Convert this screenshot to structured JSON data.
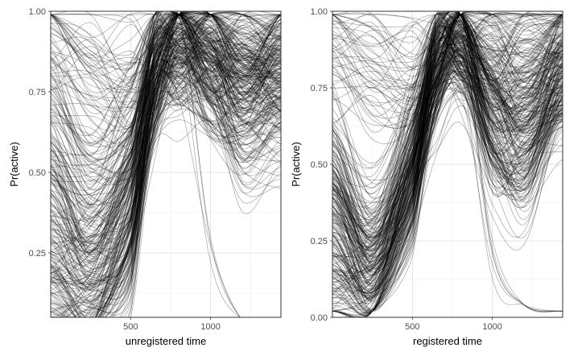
{
  "chart_data": [
    {
      "type": "line",
      "title": "",
      "xlabel": "unregistered time",
      "ylabel": "Pr(active)",
      "xlim": [
        0,
        1440
      ],
      "ylim": [
        0.05,
        1.0
      ],
      "x_ticks": [
        500,
        1000
      ],
      "x_tick_labels": [
        "500",
        "1000"
      ],
      "y_ticks": [
        0.25,
        0.5,
        0.75,
        1.0
      ],
      "y_tick_labels": [
        "0.25",
        "0.50",
        "0.75",
        "1.00"
      ],
      "grid": true,
      "legend": "none",
      "line_color": "#000000",
      "line_alpha": 0.35,
      "series_count": 300,
      "x": [
        0,
        250,
        500,
        650,
        800,
        1000,
        1200,
        1440
      ],
      "representative_curves": [
        {
          "values": [
            0.3,
            0.18,
            0.35,
            0.8,
            0.92,
            0.88,
            0.82,
            0.85
          ]
        },
        {
          "values": [
            0.12,
            0.15,
            0.45,
            0.88,
            0.95,
            0.9,
            0.8,
            0.86
          ]
        },
        {
          "values": [
            0.65,
            0.48,
            0.6,
            0.85,
            0.9,
            0.78,
            0.7,
            0.8
          ]
        },
        {
          "values": [
            0.95,
            0.85,
            0.8,
            0.9,
            0.92,
            0.88,
            0.85,
            0.9
          ]
        },
        {
          "values": [
            0.45,
            0.28,
            0.42,
            0.7,
            0.82,
            0.72,
            0.55,
            0.6
          ]
        },
        {
          "values": [
            0.2,
            0.12,
            0.3,
            0.75,
            0.9,
            0.95,
            0.88,
            0.82
          ]
        }
      ]
    },
    {
      "type": "line",
      "title": "",
      "xlabel": "registered time",
      "ylabel": "Pr(active)",
      "xlim": [
        0,
        1440
      ],
      "ylim": [
        0.0,
        1.0
      ],
      "x_ticks": [
        500,
        1000
      ],
      "x_tick_labels": [
        "500",
        "1000"
      ],
      "y_ticks": [
        0.0,
        0.25,
        0.5,
        0.75,
        1.0
      ],
      "y_tick_labels": [
        "0.00",
        "0.25",
        "0.50",
        "0.75",
        "1.00"
      ],
      "grid": true,
      "legend": "none",
      "line_color": "#000000",
      "line_alpha": 0.35,
      "series_count": 300,
      "x": [
        0,
        250,
        500,
        650,
        800,
        1000,
        1200,
        1440
      ],
      "representative_curves": [
        {
          "values": [
            0.35,
            0.15,
            0.5,
            0.85,
            0.93,
            0.75,
            0.7,
            0.85
          ]
        },
        {
          "values": [
            0.2,
            0.1,
            0.45,
            0.88,
            0.95,
            0.62,
            0.55,
            0.8
          ]
        },
        {
          "values": [
            0.55,
            0.3,
            0.55,
            0.82,
            0.9,
            0.8,
            0.78,
            0.85
          ]
        },
        {
          "values": [
            0.9,
            0.8,
            0.78,
            0.88,
            0.95,
            0.9,
            0.92,
            0.95
          ]
        },
        {
          "values": [
            0.4,
            0.22,
            0.48,
            0.75,
            0.85,
            0.55,
            0.45,
            0.7
          ]
        },
        {
          "values": [
            0.1,
            0.12,
            0.4,
            0.8,
            0.92,
            0.7,
            0.6,
            0.75
          ]
        }
      ]
    }
  ]
}
